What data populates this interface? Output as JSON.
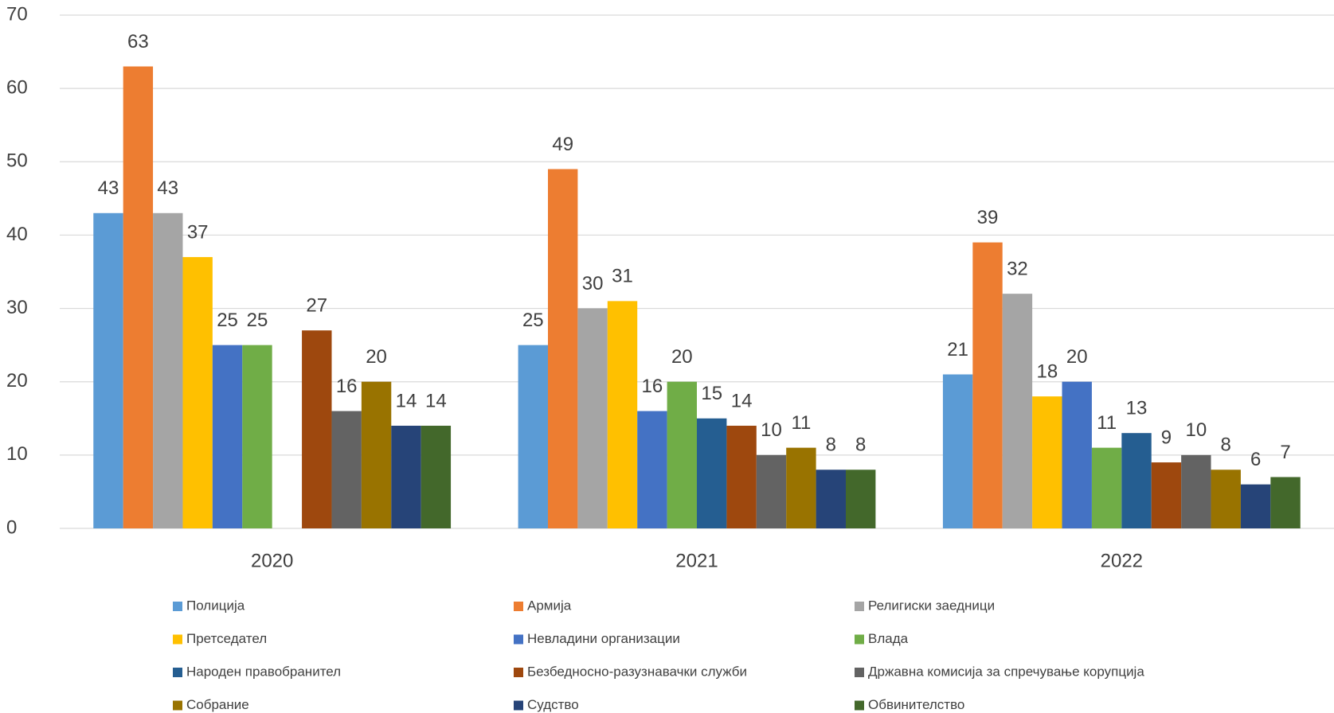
{
  "chart_data": {
    "type": "bar",
    "categories": [
      "2020",
      "2021",
      "2022"
    ],
    "series": [
      {
        "name": "Полиција",
        "color": "#5b9bd5",
        "values": [
          43,
          25,
          21
        ]
      },
      {
        "name": "Армија",
        "color": "#ed7d31",
        "values": [
          63,
          49,
          39
        ]
      },
      {
        "name": "Религиски заедници",
        "color": "#a5a5a5",
        "values": [
          43,
          30,
          32
        ]
      },
      {
        "name": "Претседател",
        "color": "#ffc000",
        "values": [
          37,
          31,
          18
        ]
      },
      {
        "name": "Невладини организации",
        "color": "#4472c4",
        "values": [
          25,
          16,
          20
        ]
      },
      {
        "name": "Влада",
        "color": "#70ad47",
        "values": [
          25,
          20,
          11
        ]
      },
      {
        "name": "Народен правобранител",
        "color": "#255e91",
        "values": [
          null,
          15,
          13
        ]
      },
      {
        "name": "Безбедносно-разузнавачки служби",
        "color": "#9e480e",
        "values": [
          27,
          14,
          9
        ]
      },
      {
        "name": "Државна комисија за спречување корупција",
        "color": "#636363",
        "values": [
          16,
          10,
          10
        ]
      },
      {
        "name": "Собрание",
        "color": "#997300",
        "values": [
          20,
          11,
          8
        ]
      },
      {
        "name": "Судство",
        "color": "#264478",
        "values": [
          14,
          8,
          6
        ]
      },
      {
        "name": "Обвинителство",
        "color": "#43682b",
        "values": [
          14,
          8,
          7
        ]
      }
    ],
    "ylim": [
      0,
      70
    ],
    "yticks": [
      0,
      10,
      20,
      30,
      40,
      50,
      60,
      70
    ],
    "grid": true,
    "legend": "bottom"
  }
}
